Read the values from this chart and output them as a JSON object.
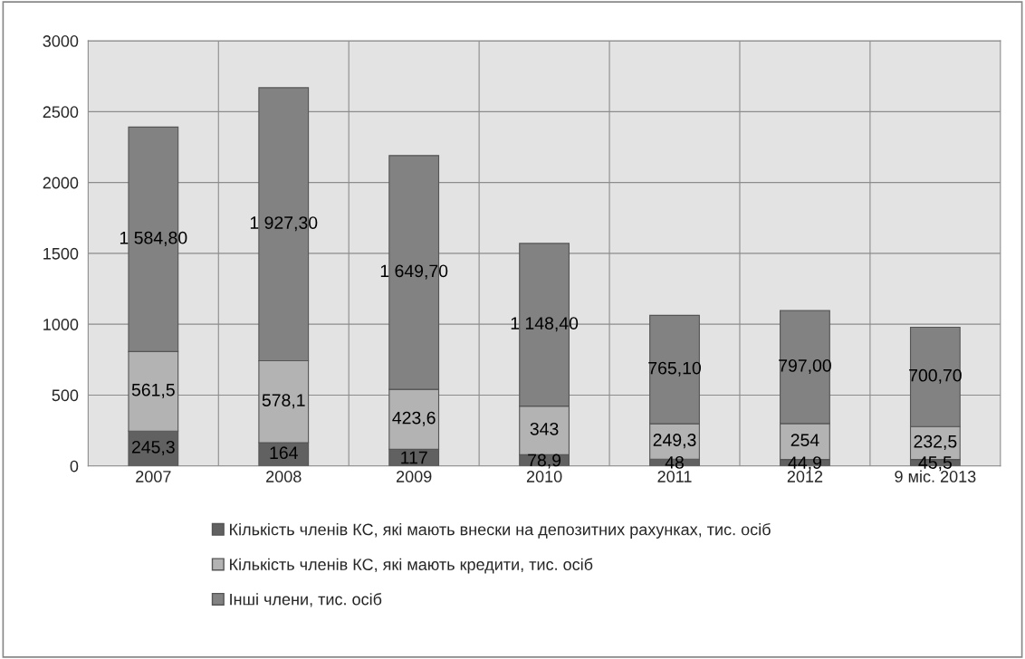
{
  "chart_data": {
    "type": "bar",
    "stacked": true,
    "categories": [
      "2007",
      "2008",
      "2009",
      "2010",
      "2011",
      "2012",
      "9 міс. 2013"
    ],
    "series": [
      {
        "name": "Кількість членів КС, які мають внески на депозитних рахунках, тис. осіб",
        "color": "#616161",
        "values": [
          245.3,
          164,
          117,
          78.9,
          48,
          44.9,
          45.5
        ],
        "value_labels": [
          "245,3",
          "164",
          "117",
          "78,9",
          "48",
          "44,9",
          "45,5"
        ]
      },
      {
        "name": "Кількість членів КС, які мають кредити, тис. осіб",
        "color": "#b3b3b3",
        "values": [
          561.5,
          578.1,
          423.6,
          343,
          249.3,
          254,
          232.5
        ],
        "value_labels": [
          "561,5",
          "578,1",
          "423,6",
          "343",
          "249,3",
          "254",
          "232,5"
        ]
      },
      {
        "name": "Інші члени, тис. осіб",
        "color": "#828282",
        "values": [
          1584.8,
          1927.3,
          1649.7,
          1148.4,
          765.1,
          797.0,
          700.7
        ],
        "value_labels": [
          "1 584,80",
          "1 927,30",
          "1 649,70",
          "1 148,40",
          "765,10",
          "797,00",
          "700,70"
        ]
      }
    ],
    "ylim": [
      0,
      3000
    ],
    "yticks": [
      0,
      500,
      1000,
      1500,
      2000,
      2500,
      3000
    ],
    "grid": true,
    "legend": "bottom"
  }
}
